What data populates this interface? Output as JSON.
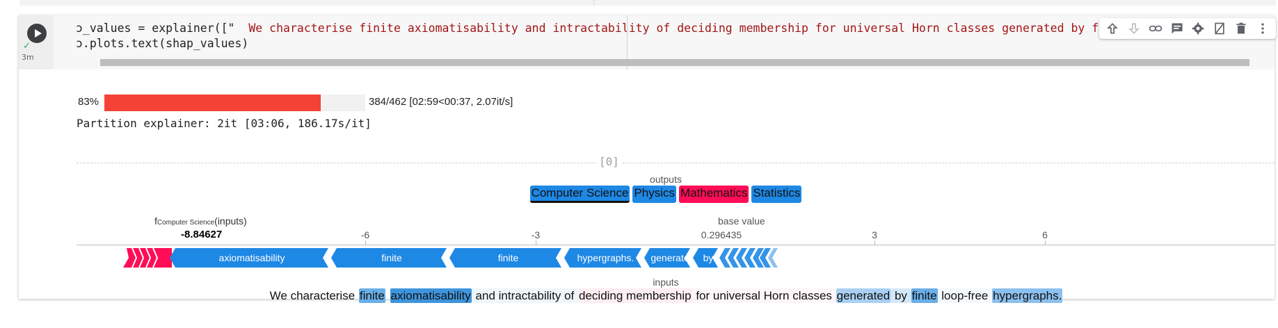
{
  "cell": {
    "status_check": "✓",
    "elapsed": "3m",
    "code_lines": {
      "line1_prefix": "ɔ_values = explainer([\"",
      "line1_string": "  We characterise finite axiomatisability and intractability of deciding membership for universal Horn classes generated by finite loop-free hypergraphs. ",
      "line1_suffix": "\"])",
      "line2": "ɔ.plots.text(shap_values)"
    },
    "toolbar_icons": [
      "arrow-up-icon",
      "arrow-down-icon",
      "link-icon",
      "comment-icon",
      "gear-icon",
      "mirror-cell-icon",
      "trash-icon",
      "more-vert-icon"
    ]
  },
  "progress": {
    "percent_label": "83%",
    "fraction": 0.83,
    "stats": "384/462 [02:59<00:37, 2.07it/s]",
    "color": "#f44336"
  },
  "partition_line": "Partition explainer: 2it [03:06, 186.17s/it]",
  "output_index": "[0]",
  "outputs_label": "outputs",
  "outputs": [
    {
      "label": "Computer Science",
      "color": "#1e88e5",
      "selected": true
    },
    {
      "label": "Physics",
      "color": "#1e88e5",
      "selected": false
    },
    {
      "label": "Mathematics",
      "color": "#ff0d57",
      "selected": false
    },
    {
      "label": "Statistics",
      "color": "#1e88e5",
      "selected": false
    }
  ],
  "force_plot": {
    "f_prefix": "f",
    "f_subscript": "Computer Science",
    "f_suffix": "(inputs)",
    "f_value": "-8.84627",
    "base_label": "base value",
    "base_value": "0.296435",
    "ticks": [
      "-6",
      "-3",
      "3",
      "6"
    ],
    "positive_color": "#ff0d57",
    "negative_color": "#1e88e5",
    "neg_segment_labels": [
      "axiomatisability",
      "finite",
      "finite",
      "hypergraphs.",
      "generate",
      "by"
    ]
  },
  "inputs_label": "inputs",
  "tokens": [
    {
      "text": "We characterise ",
      "bg": "transparent"
    },
    {
      "text": "finite",
      "bg": "#6aafe8"
    },
    {
      "text": " ",
      "bg": "transparent"
    },
    {
      "text": "axiomatisability",
      "bg": "#3f95dd"
    },
    {
      "text": " and intractability of ",
      "bg": "#eef6fc"
    },
    {
      "text": "deciding membership",
      "bg": "#fdeef2"
    },
    {
      "text": " for universal Horn classes ",
      "bg": "#fdf5f7"
    },
    {
      "text": "generated",
      "bg": "#a9d0f2"
    },
    {
      "text": " by ",
      "bg": "#d3e7f8"
    },
    {
      "text": "finite",
      "bg": "#6aafe8"
    },
    {
      "text": " loop-free ",
      "bg": "#f4f9fd"
    },
    {
      "text": "hypergraphs.",
      "bg": "#8cc0ee"
    }
  ]
}
